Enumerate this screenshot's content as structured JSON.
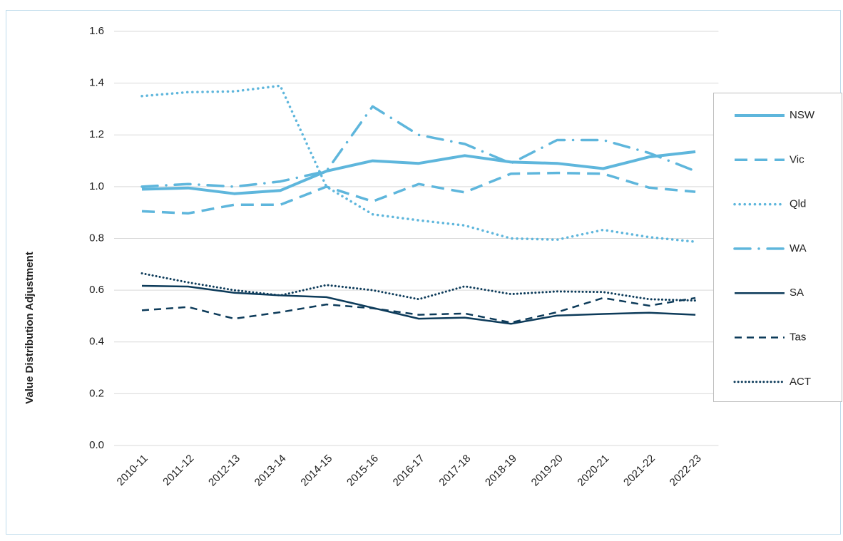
{
  "chart_data": {
    "type": "line",
    "y_label": "Value Distribution Adjustment",
    "categories": [
      "2010-11",
      "2011-12",
      "2012-13",
      "2013-14",
      "2014-15",
      "2015-16",
      "2016-17",
      "2017-18",
      "2018-19",
      "2019-20",
      "2020-21",
      "2021-22",
      "2022-23"
    ],
    "ylim": [
      0,
      1.6
    ],
    "yticks": [
      {
        "value": 0,
        "label": "0.0"
      },
      0.2,
      0.4,
      0.6,
      0.8,
      {
        "value": 1,
        "label": "1.0"
      },
      1.2,
      1.4,
      1.6
    ],
    "grid": true,
    "legend": "right",
    "series": [
      {
        "name": "NSW",
        "color": "#5eb6dc",
        "style": "solid-thick",
        "values": [
          0.99,
          0.995,
          0.973,
          0.985,
          1.06,
          1.1,
          1.09,
          1.12,
          1.095,
          1.09,
          1.07,
          1.115,
          1.135
        ]
      },
      {
        "name": "Vic",
        "color": "#5eb6dc",
        "style": "long-dash",
        "values": [
          0.905,
          0.897,
          0.93,
          0.93,
          1.0,
          0.943,
          1.01,
          0.978,
          1.05,
          1.053,
          1.05,
          0.996,
          0.98
        ]
      },
      {
        "name": "Qld",
        "color": "#5eb6dc",
        "style": "round-dot",
        "values": [
          1.35,
          1.365,
          1.368,
          1.39,
          1.0,
          0.893,
          0.87,
          0.85,
          0.8,
          0.795,
          0.833,
          0.805,
          0.787
        ]
      },
      {
        "name": "WA",
        "color": "#5eb6dc",
        "style": "dash-dot",
        "values": [
          1.0,
          1.01,
          1.0,
          1.02,
          1.06,
          1.31,
          1.2,
          1.165,
          1.09,
          1.18,
          1.18,
          1.13,
          1.06
        ]
      },
      {
        "name": "SA",
        "color": "#0d3b5a",
        "style": "solid",
        "values": [
          0.617,
          0.614,
          0.59,
          0.58,
          0.573,
          0.532,
          0.49,
          0.494,
          0.47,
          0.502,
          0.508,
          0.513,
          0.505
        ]
      },
      {
        "name": "Tas",
        "color": "#0d3b5a",
        "style": "dash",
        "values": [
          0.522,
          0.535,
          0.49,
          0.515,
          0.545,
          0.53,
          0.505,
          0.51,
          0.475,
          0.515,
          0.57,
          0.54,
          0.57
        ]
      },
      {
        "name": "ACT",
        "color": "#0d3b5a",
        "style": "dot",
        "values": [
          0.665,
          0.63,
          0.6,
          0.58,
          0.62,
          0.6,
          0.565,
          0.615,
          0.585,
          0.595,
          0.593,
          0.565,
          0.56
        ]
      }
    ]
  }
}
